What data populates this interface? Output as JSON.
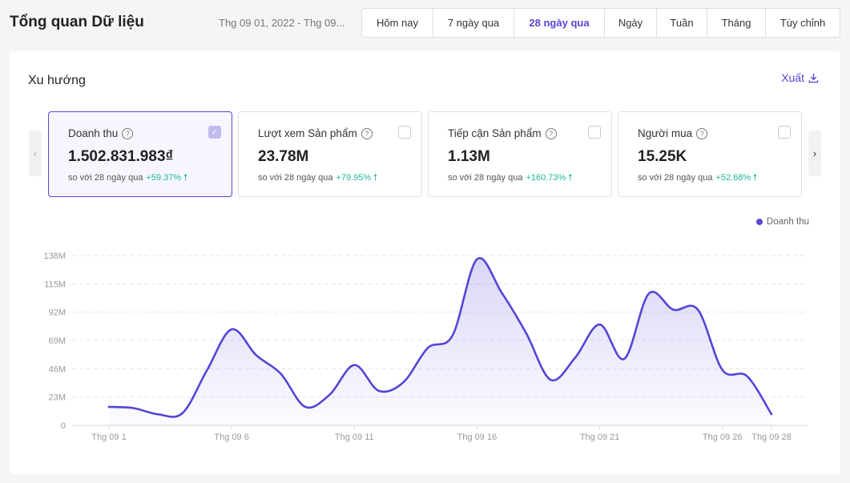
{
  "header": {
    "title": "Tổng quan Dữ liệu",
    "date_range": "Thg 09 01, 2022 - Thg 09...",
    "tabs": [
      {
        "label": "Hôm nay",
        "active": false
      },
      {
        "label": "7 ngày qua",
        "active": false
      },
      {
        "label": "28 ngày qua",
        "active": true
      },
      {
        "label": "Ngày",
        "active": false
      },
      {
        "label": "Tuần",
        "active": false
      },
      {
        "label": "Tháng",
        "active": false
      },
      {
        "label": "Tùy chỉnh",
        "active": false
      }
    ]
  },
  "panel": {
    "title": "Xu hướng",
    "export_label": "Xuất",
    "metrics": [
      {
        "label": "Doanh thu",
        "value": "1.502.831.983₫",
        "compare": "so với 28 ngày qua",
        "delta": "+59.37% 🠕",
        "checked": true
      },
      {
        "label": "Lượt xem Sản phẩm",
        "value": "23.78M",
        "compare": "so với 28 ngày qua",
        "delta": "+79.95% 🠕",
        "checked": false
      },
      {
        "label": "Tiếp cận Sản phẩm",
        "value": "1.13M",
        "compare": "so với 28 ngày qua",
        "delta": "+160.73% 🠕",
        "checked": false
      },
      {
        "label": "Người mua",
        "value": "15.25K",
        "compare": "so với 28 ngày qua",
        "delta": "+52.68% 🠕",
        "checked": false
      }
    ],
    "legend_label": "Doanh thu"
  },
  "colors": {
    "accent": "#5346d6",
    "positive": "#1bb99a"
  },
  "chart_data": {
    "type": "line",
    "series": [
      {
        "name": "Doanh thu",
        "x": [
          1,
          2,
          3,
          4,
          5,
          6,
          7,
          8,
          9,
          10,
          11,
          12,
          13,
          14,
          15,
          16,
          17,
          18,
          19,
          20,
          21,
          22,
          23,
          24,
          25,
          26,
          27,
          28
        ],
        "values": [
          15,
          14,
          9,
          10,
          45,
          78,
          57,
          42,
          15,
          25,
          49,
          28,
          35,
          63,
          73,
          135,
          108,
          75,
          37,
          55,
          82,
          54,
          107,
          94,
          94,
          45,
          40,
          9
        ]
      }
    ],
    "x_ticks": [
      {
        "x": 1,
        "label": "Thg 09 1"
      },
      {
        "x": 6,
        "label": "Thg 09 6"
      },
      {
        "x": 11,
        "label": "Thg 09 11"
      },
      {
        "x": 16,
        "label": "Thg 09 16"
      },
      {
        "x": 21,
        "label": "Thg 09 21"
      },
      {
        "x": 26,
        "label": "Thg 09 26"
      },
      {
        "x": 28,
        "label": "Thg 09 28"
      }
    ],
    "y_ticks": [
      {
        "v": 0,
        "label": "0"
      },
      {
        "v": 23,
        "label": "23M"
      },
      {
        "v": 46,
        "label": "46M"
      },
      {
        "v": 69,
        "label": "69M"
      },
      {
        "v": 92,
        "label": "92M"
      },
      {
        "v": 115,
        "label": "115M"
      },
      {
        "v": 138,
        "label": "138M"
      }
    ],
    "ylim": [
      0,
      138
    ],
    "xlim": [
      1,
      28
    ]
  }
}
